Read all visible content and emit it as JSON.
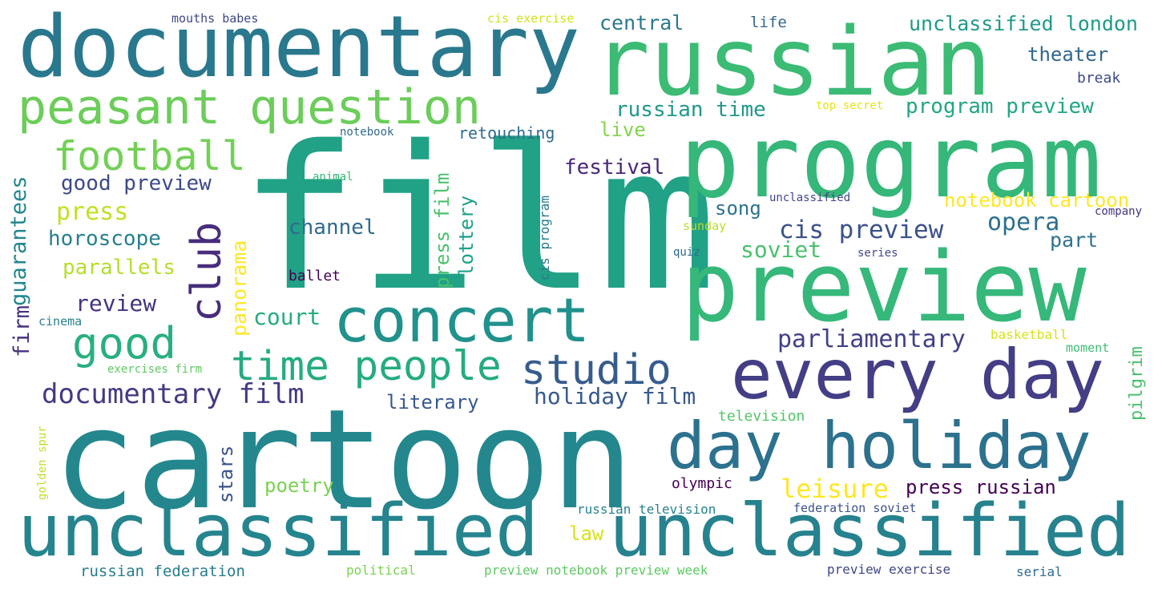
{
  "words": [
    {
      "text": "film",
      "color": "#21a185"
    },
    {
      "text": "cartoon",
      "color": "#24878e"
    },
    {
      "text": "program",
      "color": "#35b779"
    },
    {
      "text": "preview",
      "color": "#36b87a"
    },
    {
      "text": "russian",
      "color": "#3cbb75"
    },
    {
      "text": "documentary",
      "color": "#2a788e"
    },
    {
      "text": "unclassified",
      "color": "#25848e"
    },
    {
      "text": "unclassified",
      "color": "#26828e"
    },
    {
      "text": "every day",
      "color": "#433e85"
    },
    {
      "text": "day holiday",
      "color": "#2c718e"
    },
    {
      "text": "concert",
      "color": "#21918c"
    },
    {
      "text": "peasant question",
      "color": "#6ccd5a"
    },
    {
      "text": "time people",
      "color": "#25ab82"
    },
    {
      "text": "studio",
      "color": "#365c8d"
    },
    {
      "text": "football",
      "color": "#73d056"
    },
    {
      "text": "good",
      "color": "#29af7f"
    },
    {
      "text": "club",
      "color": "#472d7b"
    },
    {
      "text": "documentary film",
      "color": "#443983"
    },
    {
      "text": "holiday film",
      "color": "#38598c"
    },
    {
      "text": "cis preview",
      "color": "#3b528b"
    },
    {
      "text": "press",
      "color": "#c2df23"
    },
    {
      "text": "good preview",
      "color": "#3e4989"
    },
    {
      "text": "festival",
      "color": "#482878"
    },
    {
      "text": "opera",
      "color": "#2d708e"
    },
    {
      "text": "parliamentary",
      "color": "#424086"
    },
    {
      "text": "notebook cartoon",
      "color": "#fde725"
    },
    {
      "text": "russian time",
      "color": "#1f988b"
    },
    {
      "text": "program preview",
      "color": "#21a685"
    },
    {
      "text": "unclassified london",
      "color": "#1f9a8a"
    },
    {
      "text": "central",
      "color": "#2a788e"
    },
    {
      "text": "theater",
      "color": "#31688e"
    },
    {
      "text": "horoscope",
      "color": "#27808e"
    },
    {
      "text": "channel",
      "color": "#2f6b8e"
    },
    {
      "text": "parallels",
      "color": "#b5de2b"
    },
    {
      "text": "review",
      "color": "#46327e"
    },
    {
      "text": "soviet",
      "color": "#4ac16d"
    },
    {
      "text": "song",
      "color": "#2c728e"
    },
    {
      "text": "leisure",
      "color": "#fde725"
    },
    {
      "text": "press russian",
      "color": "#440154"
    },
    {
      "text": "part",
      "color": "#2c728e"
    },
    {
      "text": "court",
      "color": "#25ac82"
    },
    {
      "text": "literary",
      "color": "#38598c"
    },
    {
      "text": "live",
      "color": "#84d44b"
    },
    {
      "text": "poetry",
      "color": "#7ad151"
    },
    {
      "text": "law",
      "color": "#d8e219"
    },
    {
      "text": "break",
      "color": "#3e4989"
    },
    {
      "text": "life",
      "color": "#31688e"
    },
    {
      "text": "retouching",
      "color": "#2f6c8e"
    },
    {
      "text": "ballet",
      "color": "#440154"
    },
    {
      "text": "olympic",
      "color": "#440154"
    },
    {
      "text": "russian television",
      "color": "#26828e"
    },
    {
      "text": "russian federation",
      "color": "#287c8e"
    },
    {
      "text": "preview notebook preview week",
      "color": "#5ec962"
    },
    {
      "text": "preview exercise",
      "color": "#3f4788"
    },
    {
      "text": "federation soviet",
      "color": "#3b528b"
    },
    {
      "text": "serial",
      "color": "#2f6b8e"
    },
    {
      "text": "political",
      "color": "#7ad151"
    },
    {
      "text": "mouths babes",
      "color": "#3e4a89"
    },
    {
      "text": "cis exercise",
      "color": "#d2e21b"
    },
    {
      "text": "top secret",
      "color": "#e5e419"
    },
    {
      "text": "notebook",
      "color": "#31688e"
    },
    {
      "text": "animal",
      "color": "#35b779"
    },
    {
      "text": "unclassified",
      "color": "#404688"
    },
    {
      "text": "sunday",
      "color": "#b8de29"
    },
    {
      "text": "company",
      "color": "#46337f"
    },
    {
      "text": "quiz",
      "color": "#31688e"
    },
    {
      "text": "series",
      "color": "#404688"
    },
    {
      "text": "cinema",
      "color": "#27808e"
    },
    {
      "text": "exercises firm",
      "color": "#5ec962"
    },
    {
      "text": "basketball",
      "color": "#d8e219"
    },
    {
      "text": "moment",
      "color": "#3dbc74"
    },
    {
      "text": "television",
      "color": "#52c569"
    },
    {
      "text": "guarantees",
      "color": "#24878e"
    },
    {
      "text": "firm",
      "color": "#46327e"
    },
    {
      "text": "panorama",
      "color": "#fde725"
    },
    {
      "text": "press film",
      "color": "#4ac16d"
    },
    {
      "text": "lottery",
      "color": "#1fa088"
    },
    {
      "text": "stars",
      "color": "#3b528b"
    },
    {
      "text": "cis program",
      "color": "#2a788e"
    },
    {
      "text": "pilgrim",
      "color": "#4ac16d"
    },
    {
      "text": "golden spur",
      "color": "#bddf26"
    }
  ]
}
